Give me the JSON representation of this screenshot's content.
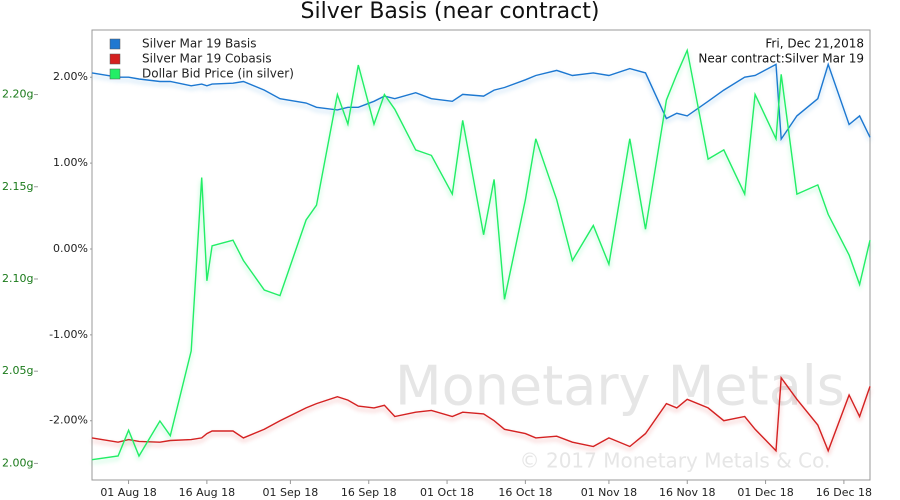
{
  "chart_data": {
    "type": "line",
    "title": "Silver Basis (near contract)",
    "annotations": [
      "Fri, Dec 21,2018",
      "Near contract:Silver Mar 19"
    ],
    "watermark": [
      "Monetary Metals",
      "© 2017 Monetary Metals & Co."
    ],
    "x": [
      "2018-07-25",
      "2018-07-30",
      "2018-08-01",
      "2018-08-03",
      "2018-08-07",
      "2018-08-09",
      "2018-08-13",
      "2018-08-15",
      "2018-08-16",
      "2018-08-17",
      "2018-08-21",
      "2018-08-23",
      "2018-08-27",
      "2018-08-30",
      "2018-09-04",
      "2018-09-06",
      "2018-09-10",
      "2018-09-12",
      "2018-09-14",
      "2018-09-17",
      "2018-09-19",
      "2018-09-21",
      "2018-09-25",
      "2018-09-28",
      "2018-10-02",
      "2018-10-04",
      "2018-10-08",
      "2018-10-10",
      "2018-10-12",
      "2018-10-16",
      "2018-10-18",
      "2018-10-22",
      "2018-10-25",
      "2018-10-29",
      "2018-11-01",
      "2018-11-05",
      "2018-11-08",
      "2018-11-12",
      "2018-11-14",
      "2018-11-16",
      "2018-11-20",
      "2018-11-23",
      "2018-11-27",
      "2018-11-29",
      "2018-12-03",
      "2018-12-04",
      "2018-12-07",
      "2018-12-11",
      "2018-12-13",
      "2018-12-17",
      "2018-12-19",
      "2018-12-21"
    ],
    "xlim": [
      "2018-07-25",
      "2018-12-21"
    ],
    "xticks": [
      {
        "value": "2018-08-01",
        "label": "01 Aug 18"
      },
      {
        "value": "2018-08-16",
        "label": "16 Aug 18"
      },
      {
        "value": "2018-09-01",
        "label": "01 Sep 18"
      },
      {
        "value": "2018-09-16",
        "label": "16 Sep 18"
      },
      {
        "value": "2018-10-01",
        "label": "01 Oct 18"
      },
      {
        "value": "2018-10-16",
        "label": "16 Oct 18"
      },
      {
        "value": "2018-11-01",
        "label": "01 Nov 18"
      },
      {
        "value": "2018-11-16",
        "label": "16 Nov 18"
      },
      {
        "value": "2018-12-01",
        "label": "01 Dec 18"
      },
      {
        "value": "2018-12-16",
        "label": "16 Dec 18"
      }
    ],
    "ylim": [
      -2.69,
      2.55
    ],
    "yticks": [
      {
        "value": -2,
        "label": "-2.00%"
      },
      {
        "value": -1,
        "label": "-1.00%"
      },
      {
        "value": 0,
        "label": "0.00%"
      },
      {
        "value": 1,
        "label": "1.00%"
      },
      {
        "value": 2,
        "label": "2.00%"
      }
    ],
    "y2lim": [
      1.991,
      2.235
    ],
    "y2ticks": [
      {
        "value": 2.0,
        "label": "2.00g"
      },
      {
        "value": 2.05,
        "label": "2.05g"
      },
      {
        "value": 2.1,
        "label": "2.10g"
      },
      {
        "value": 2.15,
        "label": "2.15g"
      },
      {
        "value": 2.2,
        "label": "2.20g"
      }
    ],
    "legend": "upper left",
    "series": [
      {
        "name": "Silver Mar 19 Basis",
        "color": "#1f78d1",
        "values": [
          2.05,
          2.0,
          2.0,
          1.98,
          1.95,
          1.95,
          1.9,
          1.92,
          1.9,
          1.92,
          1.93,
          1.95,
          1.85,
          1.75,
          1.7,
          1.65,
          1.62,
          1.65,
          1.65,
          1.72,
          1.78,
          1.75,
          1.82,
          1.75,
          1.72,
          1.8,
          1.78,
          1.85,
          1.88,
          1.97,
          2.02,
          2.08,
          2.02,
          2.05,
          2.02,
          2.1,
          2.05,
          1.52,
          1.58,
          1.55,
          1.72,
          1.85,
          2.0,
          2.02,
          2.15,
          1.28,
          1.55,
          1.75,
          2.15,
          1.45,
          1.55,
          1.3
        ]
      },
      {
        "name": "Silver Mar 19 Cobasis",
        "color": "#d42020",
        "values": [
          -2.2,
          -2.25,
          -2.22,
          -2.24,
          -2.25,
          -2.23,
          -2.22,
          -2.2,
          -2.15,
          -2.12,
          -2.12,
          -2.2,
          -2.1,
          -2.0,
          -1.85,
          -1.8,
          -1.72,
          -1.76,
          -1.83,
          -1.85,
          -1.82,
          -1.95,
          -1.9,
          -1.88,
          -1.95,
          -1.9,
          -1.92,
          -2.0,
          -2.1,
          -2.15,
          -2.2,
          -2.18,
          -2.25,
          -2.3,
          -2.2,
          -2.3,
          -2.15,
          -1.8,
          -1.85,
          -1.75,
          -1.85,
          -2.0,
          -1.95,
          -2.1,
          -2.35,
          -1.5,
          -1.75,
          -2.05,
          -2.35,
          -1.7,
          -1.95,
          -1.6
        ]
      },
      {
        "name": "Dollar Bid Price (in silver)",
        "color": "#22ee66",
        "axis": "y2",
        "values": [
          2.002,
          2.004,
          2.018,
          2.004,
          2.023,
          2.015,
          2.061,
          2.155,
          2.099,
          2.118,
          2.121,
          2.11,
          2.094,
          2.091,
          2.132,
          2.14,
          2.2,
          2.184,
          2.216,
          2.184,
          2.2,
          2.192,
          2.17,
          2.167,
          2.146,
          2.186,
          2.124,
          2.154,
          2.089,
          2.143,
          2.176,
          2.143,
          2.11,
          2.129,
          2.108,
          2.176,
          2.127,
          2.197,
          2.211,
          2.224,
          2.165,
          2.17,
          2.146,
          2.2,
          2.176,
          2.211,
          2.146,
          2.151,
          2.135,
          2.113,
          2.097,
          2.121
        ]
      }
    ]
  }
}
